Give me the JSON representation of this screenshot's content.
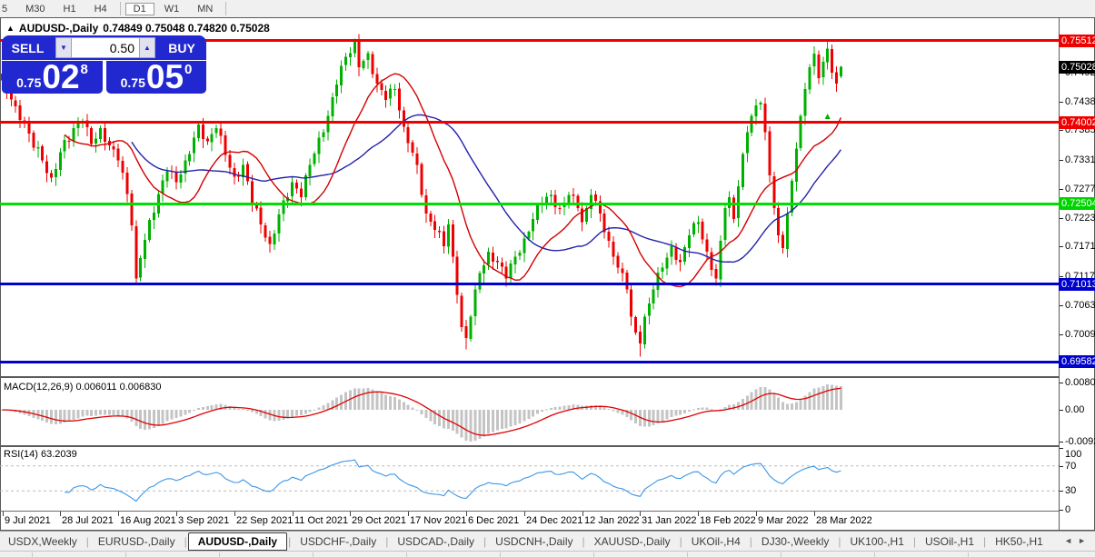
{
  "toolbar": {
    "items": [
      "5",
      "M30",
      "H1",
      "H4",
      "D1",
      "W1",
      "MN"
    ],
    "active": "D1"
  },
  "chart_header": {
    "symbol": "AUDUSD-,Daily",
    "ohlc": "0.74849 0.75048 0.74820 0.75028"
  },
  "trade_panel": {
    "sell_label": "SELL",
    "buy_label": "BUY",
    "volume": "0.50",
    "sell_small": "0.75",
    "sell_big": "02",
    "sell_sup": "8",
    "buy_small": "0.75",
    "buy_big": "05",
    "buy_sup": "0"
  },
  "price_scale": {
    "ticks": [
      "0.75460",
      "0.74920",
      "0.74380",
      "0.73855",
      "0.73315",
      "0.72775",
      "0.72235",
      "0.71710",
      "0.71170",
      "0.70630",
      "0.70090"
    ],
    "badges": [
      {
        "value": "0.75512",
        "color": "#ef0000"
      },
      {
        "value": "0.75028",
        "color": "#000000"
      },
      {
        "value": "0.74002",
        "color": "#ef0000"
      },
      {
        "value": "0.72504",
        "color": "#00d400"
      },
      {
        "value": "0.71013",
        "color": "#0000cc"
      },
      {
        "value": "0.69582",
        "color": "#0000cc"
      }
    ]
  },
  "indicators": {
    "macd_label": "MACD(12,26,9)",
    "macd_values": "0.006011 0.006830",
    "macd_axis": [
      {
        "text": "0.008061",
        "value": 0.008061
      },
      {
        "text": "0.00",
        "value": 0.0
      },
      {
        "text": "-0.00928",
        "value": -0.00928
      }
    ],
    "rsi_label": "RSI(14)",
    "rsi_value": "63.2039",
    "rsi_axis": [
      {
        "text": "100",
        "value": 100
      },
      {
        "text": "70",
        "value": 70
      },
      {
        "text": "30",
        "value": 30
      },
      {
        "text": "0",
        "value": 0
      }
    ]
  },
  "time_axis": {
    "labels": [
      "9 Jul 2021",
      "28 Jul 2021",
      "16 Aug 2021",
      "3 Sep 2021",
      "22 Sep 2021",
      "11 Oct 2021",
      "29 Oct 2021",
      "17 Nov 2021",
      "6 Dec 2021",
      "24 Dec 2021",
      "12 Jan 2022",
      "31 Jan 2022",
      "18 Feb 2022",
      "9 Mar 2022",
      "28 Mar 2022"
    ]
  },
  "tabs": {
    "items": [
      "USDX,Weekly",
      "EURUSD-,Daily",
      "AUDUSD-,Daily",
      "USDCHF-,Daily",
      "USDCAD-,Daily",
      "USDCNH-,Daily",
      "XAUUSD-,Daily",
      "UKOil-,H4",
      "DJ30-,Weekly",
      "UK100-,H1",
      "USOil-,H1",
      "HK50-,H1"
    ],
    "active_index": 2
  },
  "chart_data": {
    "type": "candlestick",
    "symbol": "AUDUSD",
    "timeframe": "Daily",
    "last_candle": {
      "o": 0.74849,
      "h": 0.75048,
      "l": 0.7482,
      "c": 0.75028
    },
    "levels": [
      {
        "price": 0.75512,
        "color": "#ef0000"
      },
      {
        "price": 0.74002,
        "color": "#ef0000"
      },
      {
        "price": 0.72504,
        "color": "#00e000"
      },
      {
        "price": 0.71013,
        "color": "#0000d0"
      },
      {
        "price": 0.69582,
        "color": "#0000d0"
      }
    ],
    "candle_count": 189,
    "anchors": [
      [
        0,
        0.7478
      ],
      [
        3,
        0.743
      ],
      [
        6,
        0.738
      ],
      [
        9,
        0.733
      ],
      [
        11,
        0.7298
      ],
      [
        13,
        0.7345
      ],
      [
        16,
        0.739
      ],
      [
        18,
        0.7402
      ],
      [
        20,
        0.736
      ],
      [
        22,
        0.739
      ],
      [
        24,
        0.7358
      ],
      [
        26,
        0.733
      ],
      [
        28,
        0.7268
      ],
      [
        29,
        0.721
      ],
      [
        30,
        0.7112
      ],
      [
        31,
        0.715
      ],
      [
        33,
        0.722
      ],
      [
        35,
        0.7268
      ],
      [
        37,
        0.731
      ],
      [
        39,
        0.729
      ],
      [
        41,
        0.733
      ],
      [
        43,
        0.7372
      ],
      [
        44,
        0.7396
      ],
      [
        46,
        0.7365
      ],
      [
        48,
        0.739
      ],
      [
        50,
        0.734
      ],
      [
        52,
        0.73
      ],
      [
        54,
        0.7322
      ],
      [
        56,
        0.7252
      ],
      [
        58,
        0.7212
      ],
      [
        60,
        0.7176
      ],
      [
        62,
        0.723
      ],
      [
        63,
        0.7256
      ],
      [
        65,
        0.729
      ],
      [
        67,
        0.7262
      ],
      [
        69,
        0.7322
      ],
      [
        71,
        0.7372
      ],
      [
        73,
        0.7412
      ],
      [
        75,
        0.747
      ],
      [
        77,
        0.7521
      ],
      [
        79,
        0.755
      ],
      [
        80,
        0.7502
      ],
      [
        82,
        0.7528
      ],
      [
        84,
        0.7472
      ],
      [
        86,
        0.7442
      ],
      [
        88,
        0.7462
      ],
      [
        90,
        0.7392
      ],
      [
        91,
        0.7362
      ],
      [
        93,
        0.7322
      ],
      [
        95,
        0.7232
      ],
      [
        97,
        0.7202
      ],
      [
        99,
        0.7172
      ],
      [
        100,
        0.7212
      ],
      [
        101,
        0.7152
      ],
      [
        102,
        0.7082
      ],
      [
        103,
        0.7022
      ],
      [
        104,
        0.7002
      ],
      [
        105,
        0.7042
      ],
      [
        107,
        0.7122
      ],
      [
        109,
        0.7162
      ],
      [
        111,
        0.7142
      ],
      [
        113,
        0.7112
      ],
      [
        115,
        0.7152
      ],
      [
        117,
        0.7186
      ],
      [
        119,
        0.7222
      ],
      [
        121,
        0.7252
      ],
      [
        123,
        0.7266
      ],
      [
        125,
        0.7242
      ],
      [
        127,
        0.7266
      ],
      [
        129,
        0.7242
      ],
      [
        130,
        0.7216
      ],
      [
        131,
        0.7242
      ],
      [
        132,
        0.7266
      ],
      [
        134,
        0.7232
      ],
      [
        136,
        0.7182
      ],
      [
        138,
        0.7132
      ],
      [
        140,
        0.7092
      ],
      [
        141,
        0.7042
      ],
      [
        142,
        0.7012
      ],
      [
        143,
        0.6992
      ],
      [
        144,
        0.7042
      ],
      [
        146,
        0.7092
      ],
      [
        148,
        0.7132
      ],
      [
        150,
        0.7172
      ],
      [
        152,
        0.7142
      ],
      [
        154,
        0.7192
      ],
      [
        156,
        0.7216
      ],
      [
        158,
        0.7162
      ],
      [
        160,
        0.7112
      ],
      [
        161,
        0.7182
      ],
      [
        162,
        0.7242
      ],
      [
        163,
        0.7262
      ],
      [
        164,
        0.7222
      ],
      [
        165,
        0.7282
      ],
      [
        166,
        0.7342
      ],
      [
        167,
        0.7382
      ],
      [
        168,
        0.7412
      ],
      [
        169,
        0.7432
      ],
      [
        170,
        0.7437
      ],
      [
        171,
        0.7382
      ],
      [
        172,
        0.7302
      ],
      [
        173,
        0.7242
      ],
      [
        174,
        0.7192
      ],
      [
        175,
        0.7168
      ],
      [
        176,
        0.7232
      ],
      [
        177,
        0.7292
      ],
      [
        178,
        0.7352
      ],
      [
        179,
        0.7412
      ],
      [
        180,
        0.7462
      ],
      [
        181,
        0.7502
      ],
      [
        182,
        0.7527
      ],
      [
        183,
        0.7482
      ],
      [
        184,
        0.7512
      ],
      [
        185,
        0.7536
      ],
      [
        186,
        0.7492
      ],
      [
        187,
        0.7472
      ],
      [
        188,
        0.75028
      ]
    ],
    "wick_overrides": {
      "30": {
        "l": 0.7102
      },
      "79": {
        "h": 0.7555
      },
      "82": {
        "h": 0.7532
      },
      "104": {
        "l": 0.6981
      },
      "143": {
        "l": 0.6968
      },
      "170": {
        "h": 0.744
      },
      "182": {
        "h": 0.7541
      },
      "185": {
        "h": 0.7551
      }
    },
    "ma": [
      {
        "name": "fast-ma",
        "period": 15,
        "color": "#d40000"
      },
      {
        "name": "slow-ma",
        "period": 30,
        "color": "#2222aa"
      }
    ],
    "colors": {
      "up": "#00b000",
      "down": "#ef0000",
      "macd_hist": "#c4c4c4",
      "macd_signal": "#e00000",
      "rsi_line": "#3b96e8"
    }
  }
}
